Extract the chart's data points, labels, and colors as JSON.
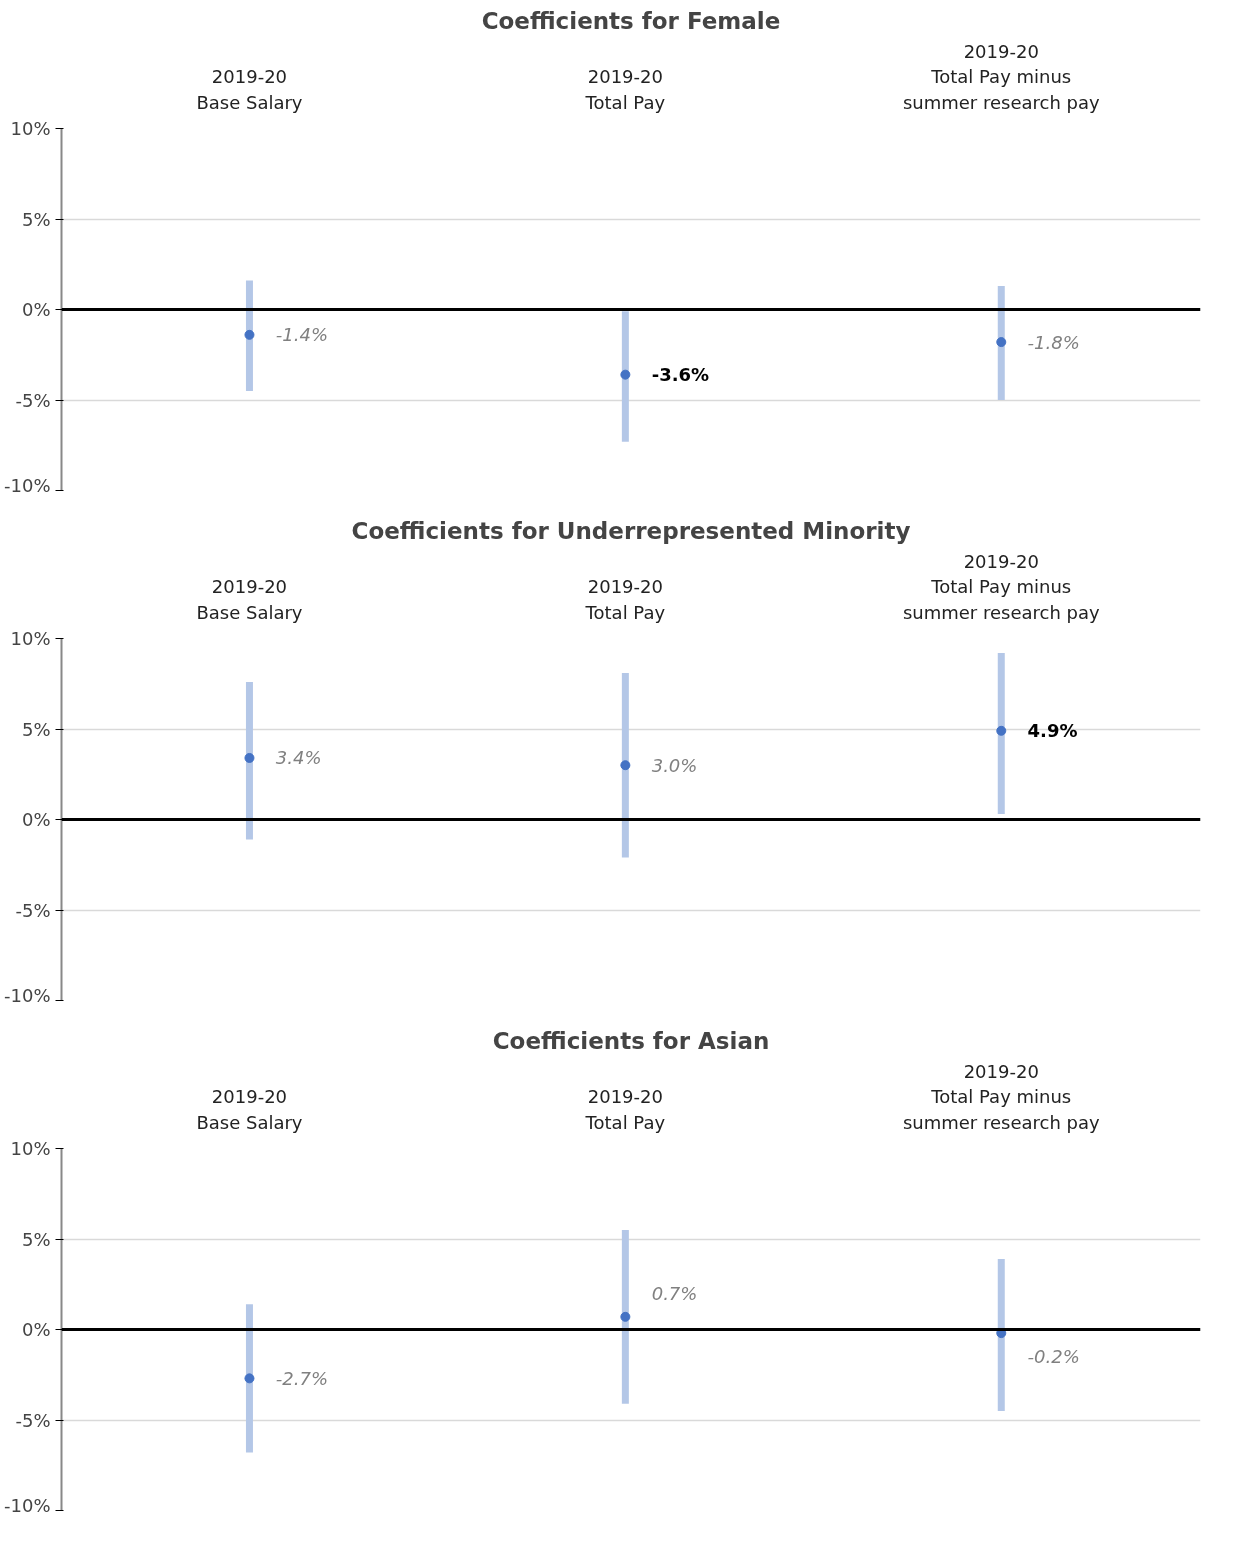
{
  "chart_data": [
    {
      "type": "scatter",
      "title": "Coefficients for Female",
      "categories": [
        "2019-20\nBase Salary",
        "2019-20\nTotal Pay",
        "2019-20\nTotal Pay minus\nsummer research pay"
      ],
      "series": [
        {
          "color": "#4472c4",
          "values": [
            -1.4,
            -3.6,
            -1.8
          ],
          "errors": [
            [
              -4.5,
              1.6
            ],
            [
              -7.3,
              -0.1
            ],
            [
              -5.0,
              1.3
            ]
          ],
          "value_labels": [
            "-1.4%",
            "-3.6%",
            "-1.8%"
          ]
        }
      ],
      "ylim": [
        -10,
        10
      ],
      "yticks": [
        {
          "value": -10,
          "label": "-10%"
        },
        {
          "value": -5,
          "label": "-5%"
        },
        {
          "value": 0,
          "label": "0%"
        },
        {
          "value": 5,
          "label": "5%"
        },
        {
          "value": 10,
          "label": "10%"
        }
      ],
      "grid": "y",
      "ref_lines": [
        {
          "axis": "y",
          "value": 0,
          "color": "#000000"
        }
      ]
    },
    {
      "type": "scatter",
      "title": "Coefficients for Underrepresented Minority",
      "categories": [
        "2019-20\nBase Salary",
        "2019-20\nTotal Pay",
        "2019-20\nTotal Pay minus\nsummer research pay"
      ],
      "series": [
        {
          "color": "#4472c4",
          "values": [
            3.4,
            3.0,
            4.9
          ],
          "errors": [
            [
              -1.1,
              7.6
            ],
            [
              -2.1,
              8.1
            ],
            [
              0.3,
              9.2
            ]
          ],
          "value_labels": [
            "3.4%",
            "3.0%",
            "4.9%"
          ]
        }
      ],
      "ylim": [
        -10,
        10
      ],
      "yticks": [
        {
          "value": -10,
          "label": "-10%"
        },
        {
          "value": -5,
          "label": "-5%"
        },
        {
          "value": 0,
          "label": "0%"
        },
        {
          "value": 5,
          "label": "5%"
        },
        {
          "value": 10,
          "label": "10%"
        }
      ],
      "grid": "y",
      "ref_lines": [
        {
          "axis": "y",
          "value": 0,
          "color": "#000000"
        }
      ]
    },
    {
      "type": "scatter",
      "title": "Coefficients for Asian",
      "categories": [
        "2019-20\nBase Salary",
        "2019-20\nTotal Pay",
        "2019-20\nTotal Pay minus\nsummer research pay"
      ],
      "series": [
        {
          "color": "#4472c4",
          "values": [
            -2.7,
            0.7,
            -0.2
          ],
          "errors": [
            [
              -6.8,
              1.4
            ],
            [
              -4.1,
              5.5
            ],
            [
              -4.5,
              3.9
            ]
          ],
          "value_labels": [
            "-2.7%",
            "0.7%",
            "-0.2%"
          ]
        }
      ],
      "ylim": [
        -10,
        10
      ],
      "yticks": [
        {
          "value": -10,
          "label": "-10%"
        },
        {
          "value": -5,
          "label": "-5%"
        },
        {
          "value": 0,
          "label": "0%"
        },
        {
          "value": 5,
          "label": "5%"
        },
        {
          "value": 10,
          "label": "10%"
        }
      ],
      "grid": "y",
      "ref_lines": [
        {
          "axis": "y",
          "value": 0,
          "color": "#000000"
        }
      ]
    }
  ]
}
